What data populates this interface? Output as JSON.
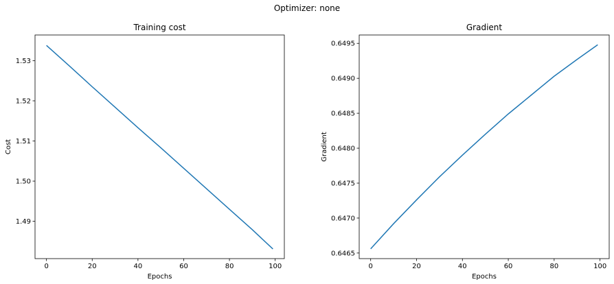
{
  "figure": {
    "suptitle": "Optimizer: none"
  },
  "style": {
    "line_color": "#1f77b4",
    "background": "#ffffff",
    "axis_color": "#000000"
  },
  "chart_data": [
    {
      "type": "line",
      "title": "Training cost",
      "xlabel": "Epochs",
      "ylabel": "Cost",
      "xlim": [
        -5,
        104
      ],
      "ylim": [
        1.4807,
        1.5364
      ],
      "xticks": [
        0,
        20,
        40,
        60,
        80,
        100
      ],
      "xtick_labels": [
        "0",
        "20",
        "40",
        "60",
        "80",
        "100"
      ],
      "yticks": [
        1.49,
        1.5,
        1.51,
        1.52,
        1.53
      ],
      "ytick_labels": [
        "1.49",
        "1.50",
        "1.51",
        "1.52",
        "1.53"
      ],
      "grid": false,
      "series": [
        {
          "color": "#1f77b4",
          "x": [
            0,
            10,
            20,
            30,
            40,
            50,
            60,
            70,
            80,
            90,
            99
          ],
          "y": [
            1.5338,
            1.5287,
            1.5235,
            1.5184,
            1.5133,
            1.5083,
            1.5032,
            1.4981,
            1.493,
            1.4879,
            1.4831
          ]
        }
      ]
    },
    {
      "type": "line",
      "title": "Gradient",
      "xlabel": "Epochs",
      "ylabel": "Gradient",
      "xlim": [
        -5,
        104
      ],
      "ylim": [
        0.64642,
        0.64962
      ],
      "xticks": [
        0,
        20,
        40,
        60,
        80,
        100
      ],
      "xtick_labels": [
        "0",
        "20",
        "40",
        "60",
        "80",
        "100"
      ],
      "yticks": [
        0.6465,
        0.647,
        0.6475,
        0.648,
        0.6485,
        0.649,
        0.6495
      ],
      "ytick_labels": [
        "0.6465",
        "0.6470",
        "0.6475",
        "0.6480",
        "0.6485",
        "0.6490",
        "0.6495"
      ],
      "grid": false,
      "series": [
        {
          "color": "#1f77b4",
          "x": [
            0,
            10,
            20,
            30,
            40,
            50,
            60,
            70,
            80,
            90,
            99
          ],
          "y": [
            0.64656,
            0.64692,
            0.64726,
            0.64759,
            0.6479,
            0.6482,
            0.64849,
            0.64876,
            0.64903,
            0.64927,
            0.64948
          ]
        }
      ]
    }
  ]
}
